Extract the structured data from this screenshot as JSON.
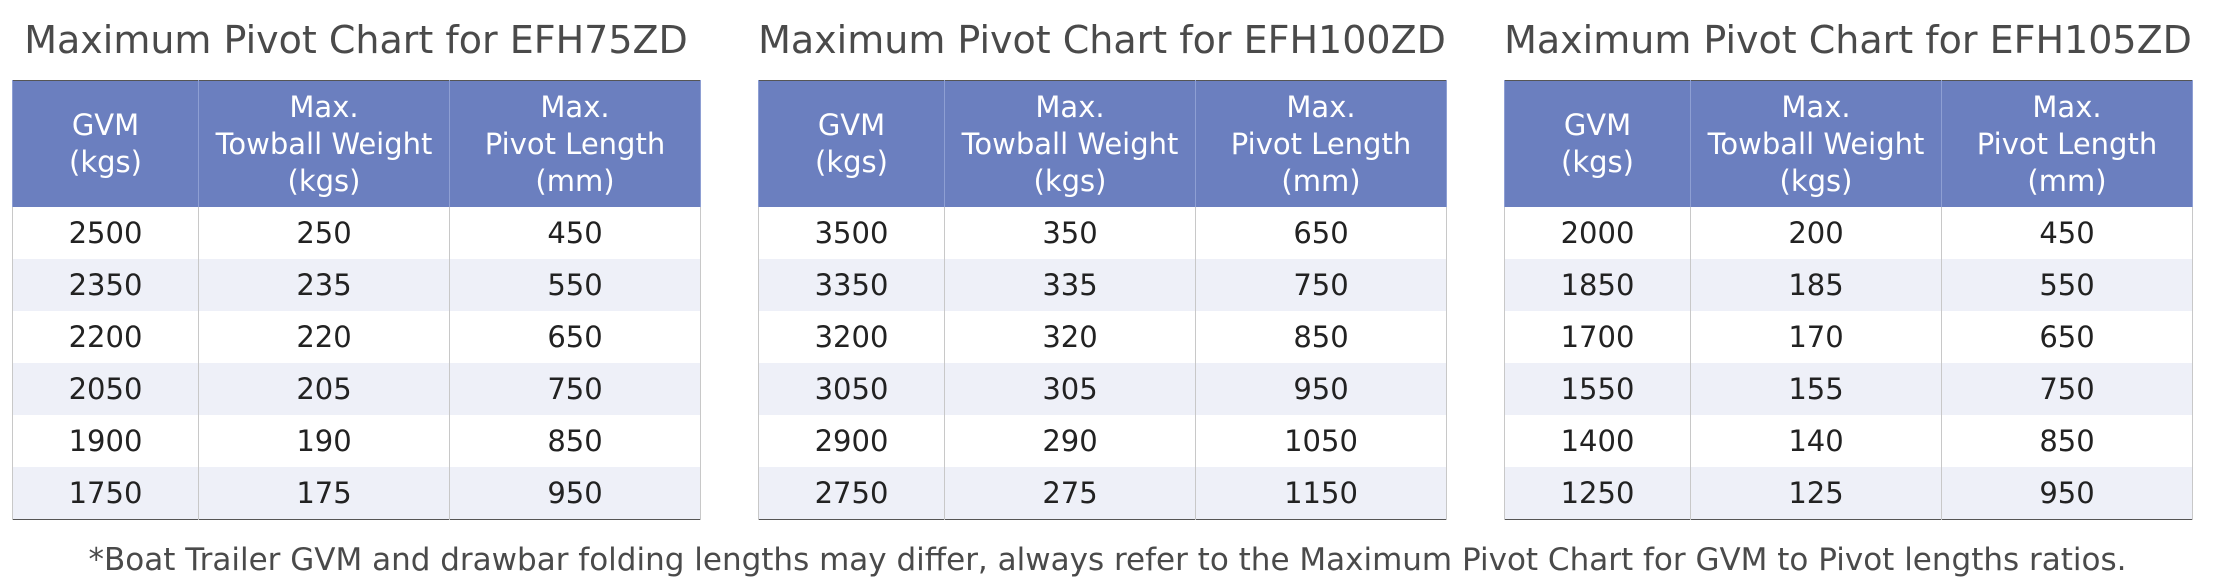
{
  "charts": [
    {
      "title": "Maximum Pivot Chart for EFH75ZD",
      "headers": [
        [
          "GVM",
          "(kgs)"
        ],
        [
          "Max.",
          "Towball Weight",
          "(kgs)"
        ],
        [
          "Max.",
          "Pivot Length",
          "(mm)"
        ]
      ],
      "rows": [
        [
          "2500",
          "250",
          "450"
        ],
        [
          "2350",
          "235",
          "550"
        ],
        [
          "2200",
          "220",
          "650"
        ],
        [
          "2050",
          "205",
          "750"
        ],
        [
          "1900",
          "190",
          "850"
        ],
        [
          "1750",
          "175",
          "950"
        ]
      ]
    },
    {
      "title": "Maximum Pivot Chart for EFH100ZD",
      "headers": [
        [
          "GVM",
          "(kgs)"
        ],
        [
          "Max.",
          "Towball Weight",
          "(kgs)"
        ],
        [
          "Max.",
          "Pivot Length",
          "(mm)"
        ]
      ],
      "rows": [
        [
          "3500",
          "350",
          "650"
        ],
        [
          "3350",
          "335",
          "750"
        ],
        [
          "3200",
          "320",
          "850"
        ],
        [
          "3050",
          "305",
          "950"
        ],
        [
          "2900",
          "290",
          "1050"
        ],
        [
          "2750",
          "275",
          "1150"
        ]
      ]
    },
    {
      "title": "Maximum Pivot Chart for EFH105ZD",
      "headers": [
        [
          "GVM",
          "(kgs)"
        ],
        [
          "Max.",
          "Towball Weight",
          "(kgs)"
        ],
        [
          "Max.",
          "Pivot Length",
          "(mm)"
        ]
      ],
      "rows": [
        [
          "2000",
          "200",
          "450"
        ],
        [
          "1850",
          "185",
          "550"
        ],
        [
          "1700",
          "170",
          "650"
        ],
        [
          "1550",
          "155",
          "750"
        ],
        [
          "1400",
          "140",
          "850"
        ],
        [
          "1250",
          "125",
          "950"
        ]
      ]
    }
  ],
  "footnote": "*Boat Trailer GVM and drawbar folding lengths may differ, always refer to the Maximum Pivot Chart for GVM to Pivot lengths ratios.",
  "colors": {
    "header_bg": "#6b7fbf",
    "row_alt_bg": "#eef0f8",
    "border": "#555555"
  }
}
